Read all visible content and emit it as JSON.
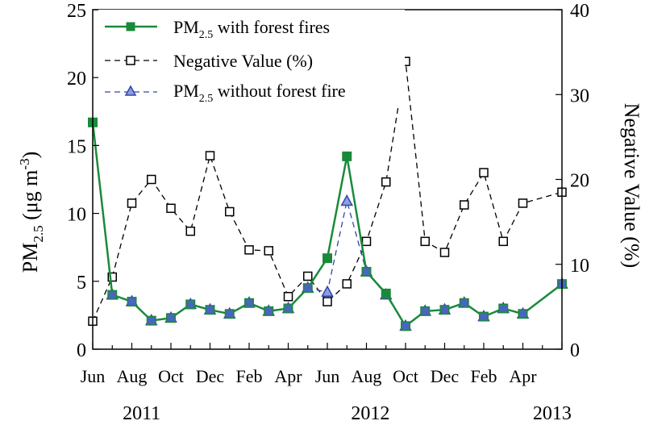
{
  "chart_data": {
    "type": "line",
    "title": "",
    "xlabel": "",
    "x_tick_labels": [
      "Jun",
      "Aug",
      "Oct",
      "Dec",
      "Feb",
      "Apr",
      "Jun",
      "Aug",
      "Oct",
      "Dec",
      "Feb",
      "Apr"
    ],
    "year_labels": [
      "2011",
      "2012",
      "2013"
    ],
    "months": [
      "2011-06",
      "2011-07",
      "2011-08",
      "2011-09",
      "2011-10",
      "2011-11",
      "2011-12",
      "2012-01",
      "2012-02",
      "2012-03",
      "2012-04",
      "2012-05",
      "2012-06",
      "2012-07",
      "2012-08",
      "2012-09",
      "2012-10",
      "2012-11",
      "2012-12",
      "2013-01",
      "2013-02",
      "2013-03",
      "2013-04",
      "2013-05",
      "2013-06"
    ],
    "y_left": {
      "label_main": "PM",
      "label_sub": "2.5",
      "label_unit": " (μg m",
      "label_sup": "-3",
      "label_close": ")",
      "ylim": [
        0,
        25
      ],
      "ticks": [
        0,
        5,
        10,
        15,
        20,
        25
      ]
    },
    "y_right": {
      "label": "Negative Value (%)",
      "ylim": [
        0,
        40
      ],
      "ticks": [
        0,
        10,
        20,
        30,
        40
      ]
    },
    "legend_placement": "top-left",
    "series": [
      {
        "name_main": "PM",
        "name_sub": "2.5",
        "name_rest": " with forest fires",
        "axis": "left",
        "color": "#1a8a3a",
        "marker": "square-filled",
        "dash": "solid",
        "values": [
          16.7,
          4.0,
          3.5,
          2.1,
          2.3,
          3.3,
          2.9,
          2.6,
          3.4,
          2.8,
          3.0,
          4.5,
          6.7,
          14.2,
          5.7,
          4.1,
          1.7,
          2.8,
          2.9,
          3.4,
          2.4,
          3.0,
          2.6,
          null,
          4.8
        ]
      },
      {
        "name": "Negative Value (%)",
        "axis": "right",
        "color": "#000000",
        "marker": "square-open",
        "dash": "dashed",
        "values": [
          3.3,
          8.5,
          17.2,
          20.0,
          16.6,
          13.9,
          22.8,
          16.2,
          11.7,
          11.6,
          6.2,
          8.6,
          5.6,
          7.7,
          12.7,
          19.7,
          33.9,
          12.7,
          11.4,
          17.0,
          20.8,
          12.7,
          17.2,
          null,
          18.5
        ]
      },
      {
        "name_main": "PM",
        "name_sub": "2.5",
        "name_rest": " without forest fire",
        "axis": "left",
        "color": "#3344aa",
        "marker": "triangle-open",
        "dash": "dashed",
        "values": [
          null,
          4.0,
          3.5,
          2.1,
          2.3,
          3.3,
          2.9,
          2.6,
          3.4,
          2.8,
          3.0,
          4.5,
          4.2,
          10.9,
          5.7,
          4.0,
          1.7,
          2.8,
          2.9,
          3.4,
          2.4,
          3.0,
          2.6,
          null,
          4.8
        ]
      }
    ]
  }
}
